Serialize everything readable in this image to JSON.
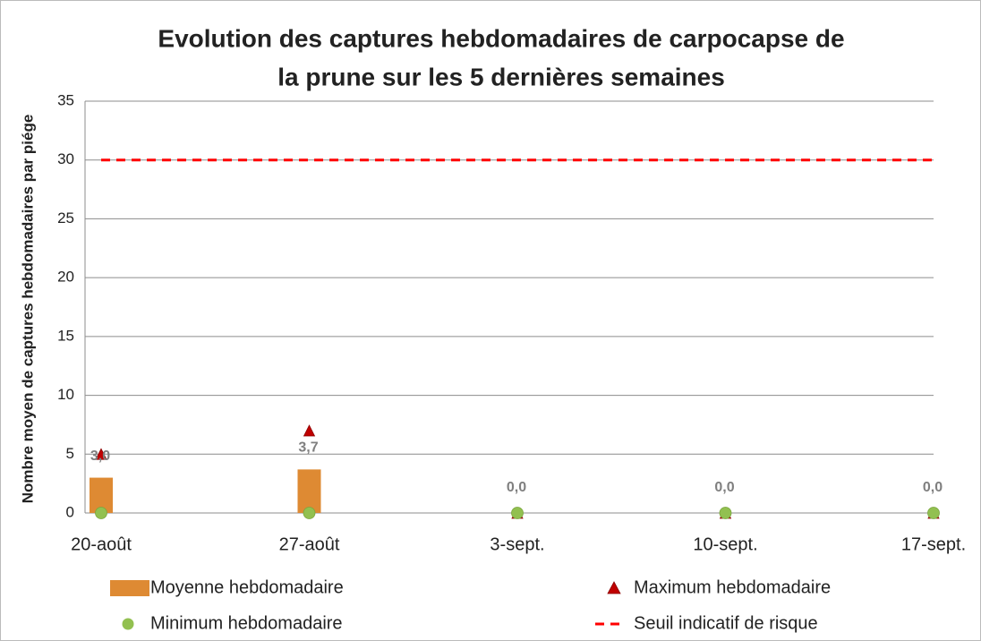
{
  "chart_data": {
    "type": "combo",
    "title": [
      "Evolution des captures hebdomadaires de carpocapse de",
      "la prune sur les 5 dernières semaines"
    ],
    "y_label": "Nombre moyen de captures hebdomadaires par piége",
    "categories": [
      "20-août",
      "27-août",
      "3-sept.",
      "10-sept.",
      "17-sept."
    ],
    "ylim": [
      0,
      35
    ],
    "yticks": [
      0,
      5,
      10,
      15,
      20,
      25,
      30,
      35
    ],
    "grid": true,
    "series": [
      {
        "name": "Moyenne hebdomadaire",
        "kind": "bar",
        "color": "#de8a33",
        "values": [
          3.0,
          3.7,
          0,
          0,
          0
        ],
        "value_labels": [
          "3,0",
          "3,7",
          "0,0",
          "0,0",
          "0,0"
        ]
      },
      {
        "name": "Maximum hebdomadaire",
        "kind": "triangle",
        "color": "#c00000",
        "values": [
          5,
          7,
          0,
          0,
          0
        ]
      },
      {
        "name": "Minimum hebdomadaire",
        "kind": "circle",
        "color": "#92c050",
        "values": [
          0,
          0,
          0,
          0,
          0
        ]
      },
      {
        "name": "Seuil indicatif de risque",
        "kind": "dashed",
        "color": "#ff0000",
        "values": [
          30,
          30,
          30,
          30,
          30
        ]
      }
    ]
  }
}
